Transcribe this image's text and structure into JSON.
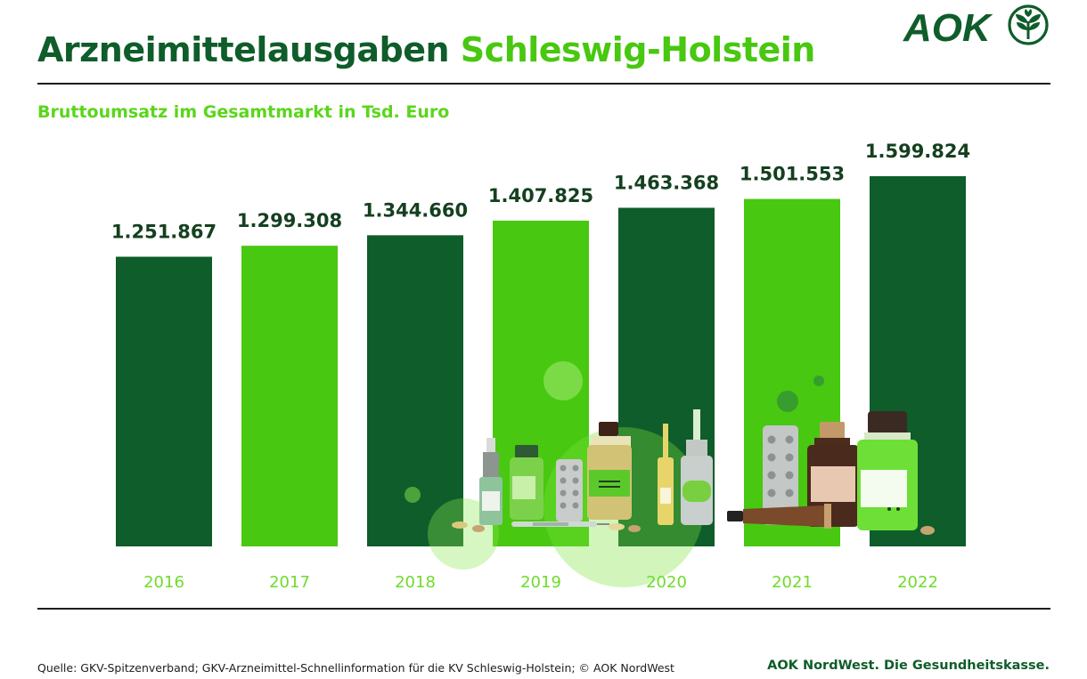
{
  "header": {
    "title_part1": "Arzneimittelausgaben",
    "title_part2": "Schleswig-Holstein",
    "subtitle": "Bruttoumsatz im Gesamtmarkt in Tsd. Euro",
    "logo_text": "AOK"
  },
  "colors": {
    "dark_green": "#0f5d2a",
    "bright_green": "#48c810",
    "label_green": "#6fdb2c",
    "value_text": "#14401f"
  },
  "chart_data": {
    "type": "bar",
    "categories": [
      "2016",
      "2017",
      "2018",
      "2019",
      "2020",
      "2021",
      "2022"
    ],
    "values": [
      1251867,
      1299308,
      1344660,
      1407825,
      1463368,
      1501553,
      1599824
    ],
    "value_labels": [
      "1.251.867",
      "1.299.308",
      "1.344.660",
      "1.407.825",
      "1.463.368",
      "1.501.553",
      "1.599.824"
    ],
    "bar_colors": [
      "#0f5d2a",
      "#48c810",
      "#0f5d2a",
      "#48c810",
      "#0f5d2a",
      "#48c810",
      "#0f5d2a"
    ],
    "title": "",
    "xlabel": "",
    "ylabel": "",
    "ylim": [
      0,
      1599824
    ],
    "grid": false,
    "legend": "none"
  },
  "decoration": {
    "illustration": "medicine bottles, pills, syringe and ointment tube in front of bars 2019–2022"
  },
  "footer": {
    "source": "Quelle: GKV-Spitzenverband; GKV-Arzneimittel-Schnellinformation für die KV Schleswig-Holstein; © AOK NordWest",
    "slogan": "AOK NordWest. Die Gesundheitskasse."
  }
}
